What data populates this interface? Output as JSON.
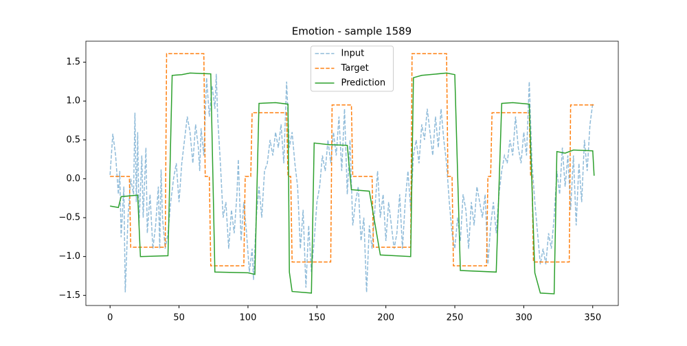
{
  "chart_data": {
    "type": "line",
    "title": "Emotion - sample 1589",
    "xlim": [
      -17.55,
      368.55
    ],
    "xticks": [
      0,
      50,
      100,
      150,
      200,
      250,
      300,
      350
    ],
    "ylim": [
      -1.63,
      1.77
    ],
    "yticks": [
      {
        "value": -1.5,
        "label": "−1.5"
      },
      {
        "value": -1.0,
        "label": "−1.0"
      },
      {
        "value": -0.5,
        "label": "−0.5"
      },
      {
        "value": 0,
        "label": "0.0"
      },
      0.5,
      {
        "value": 1.0,
        "label": "1.0"
      },
      1.5
    ],
    "legend": "upper center",
    "series": [
      {
        "name": "Input",
        "color": "#1f77b4",
        "dash": true,
        "opacity": 0.5,
        "x": [
          0,
          2,
          4,
          6,
          7,
          8,
          10,
          11,
          13,
          15,
          17,
          18,
          19,
          20,
          21,
          23,
          24,
          26,
          27,
          29,
          31,
          33,
          35,
          36,
          37,
          38,
          40,
          42,
          44,
          46,
          48,
          50,
          52,
          54,
          56,
          58,
          60,
          62,
          64,
          65,
          66,
          68,
          70,
          72,
          74,
          76,
          77,
          78,
          80,
          82,
          84,
          86,
          88,
          90,
          92,
          93,
          95,
          97,
          99,
          101,
          103,
          104,
          106,
          108,
          110,
          112,
          114,
          116,
          118,
          120,
          122,
          124,
          126,
          128,
          130,
          132,
          134,
          136,
          138,
          140,
          142,
          144,
          146,
          148,
          150,
          152,
          154,
          156,
          158,
          160,
          162,
          164,
          166,
          168,
          170,
          172,
          174,
          176,
          178,
          180,
          182,
          184,
          186,
          188,
          190,
          192,
          194,
          196,
          198,
          200,
          202,
          204,
          206,
          208,
          210,
          212,
          214,
          216,
          218,
          220,
          222,
          224,
          226,
          228,
          230,
          232,
          234,
          236,
          238,
          240,
          242,
          244,
          246,
          248,
          250,
          252,
          254,
          256,
          258,
          260,
          262,
          264,
          266,
          268,
          270,
          272,
          274,
          276,
          278,
          280,
          282,
          284,
          286,
          288,
          290,
          292,
          294,
          296,
          298,
          300,
          302,
          304,
          306,
          308,
          310,
          312,
          314,
          316,
          318,
          320,
          322,
          324,
          326,
          328,
          330,
          332,
          334,
          336,
          338,
          340,
          342,
          344,
          346,
          348,
          350
        ],
        "values": [
          0.05,
          0.58,
          0.3,
          -0.2,
          0.1,
          -0.75,
          -0.1,
          -1.46,
          -0.5,
          0.0,
          -0.2,
          0.85,
          -0.3,
          0.6,
          -0.6,
          0.3,
          -0.5,
          0.4,
          -0.7,
          -0.2,
          -0.9,
          -0.6,
          -0.1,
          -0.9,
          0.12,
          -0.5,
          -0.9,
          -0.7,
          -0.3,
          0.0,
          0.2,
          -0.3,
          0.2,
          0.5,
          0.8,
          0.6,
          0.2,
          0.7,
          0.4,
          0.1,
          0.65,
          0.3,
          1.3,
          0.8,
          1.2,
          0.9,
          1.35,
          0.8,
          0.2,
          -0.5,
          -0.3,
          -0.9,
          -0.4,
          -0.7,
          -0.2,
          0.25,
          -0.8,
          -0.3,
          -0.7,
          -1.2,
          -0.9,
          -1.3,
          -0.5,
          -0.1,
          -0.5,
          0.1,
          0.2,
          0.5,
          0.3,
          0.6,
          0.4,
          0.7,
          0.2,
          1.25,
          0.4,
          0.6,
          0.2,
          -0.1,
          -0.9,
          -0.4,
          -1.4,
          -0.6,
          -1.2,
          -0.8,
          -0.3,
          -0.1,
          0.3,
          0.1,
          0.5,
          0.2,
          0.6,
          0.3,
          0.8,
          0.1,
          0.9,
          -0.2,
          0.5,
          -0.6,
          -0.3,
          -0.1,
          -0.8,
          -0.5,
          -1.46,
          -0.6,
          -0.9,
          -0.4,
          0.1,
          -0.5,
          -0.2,
          -0.8,
          -0.3,
          -0.6,
          -0.9,
          -0.7,
          -0.2,
          -0.9,
          -0.3,
          0.1,
          -0.4,
          0.3,
          0.5,
          0.2,
          0.7,
          0.5,
          0.9,
          0.6,
          0.3,
          0.8,
          0.4,
          0.9,
          0.5,
          0.2,
          -0.3,
          -0.7,
          -0.9,
          -0.5,
          -0.8,
          -0.2,
          -0.4,
          -0.9,
          -0.3,
          -0.6,
          -0.1,
          -0.3,
          -0.5,
          -0.2,
          -1.1,
          -0.6,
          -0.3,
          -0.7,
          -0.2,
          0.1,
          0.3,
          0.2,
          0.5,
          0.3,
          0.8,
          0.4,
          0.2,
          0.6,
          0.3,
          1.25,
          0.2,
          -0.3,
          -0.7,
          -1.1,
          -0.9,
          -1.1,
          -0.7,
          -0.9,
          -0.5,
          0.1,
          -0.2,
          0.4,
          -0.1,
          0.3,
          -0.4,
          0.3,
          -0.6,
          0.2,
          -0.3,
          0.5,
          0.1,
          0.7,
          0.97
        ]
      },
      {
        "name": "Target",
        "color": "#ff7f0e",
        "dash": true,
        "opacity": 1,
        "x": [
          0,
          14,
          15,
          40,
          41,
          68,
          69,
          72,
          73,
          97,
          98,
          102,
          103,
          128,
          129,
          131,
          132,
          160,
          161,
          175,
          176,
          190,
          191,
          218,
          219,
          244,
          245,
          248,
          249,
          273,
          274,
          276,
          277,
          304,
          305,
          306,
          307,
          333,
          334,
          351
        ],
        "values": [
          0.03,
          0.03,
          -0.88,
          -0.88,
          1.61,
          1.61,
          0.03,
          0.03,
          -1.12,
          -1.12,
          0.03,
          0.03,
          0.85,
          0.85,
          0.03,
          0.03,
          -1.07,
          -1.07,
          0.95,
          0.95,
          0.03,
          0.03,
          -0.88,
          -0.88,
          1.61,
          1.61,
          0.03,
          0.03,
          -1.12,
          -1.12,
          0.03,
          0.03,
          0.85,
          0.85,
          0.03,
          0.03,
          -1.07,
          -1.07,
          0.95,
          0.95
        ]
      },
      {
        "name": "Prediction",
        "color": "#2ca02c",
        "dash": false,
        "opacity": 1,
        "x": [
          0,
          6,
          8,
          20,
          22,
          42,
          45,
          52,
          58,
          73,
          76,
          100,
          105,
          108,
          120,
          129,
          130,
          132,
          146,
          148,
          158,
          172,
          175,
          188,
          196,
          218,
          220,
          226,
          244,
          250,
          254,
          280,
          284,
          292,
          304,
          308,
          312,
          322,
          324,
          330,
          336,
          350,
          351
        ],
        "values": [
          -0.35,
          -0.37,
          -0.23,
          -0.21,
          -1.0,
          -0.99,
          1.33,
          1.34,
          1.36,
          1.35,
          -1.2,
          -1.21,
          -1.23,
          0.97,
          0.98,
          0.96,
          -1.2,
          -1.45,
          -1.47,
          0.46,
          0.44,
          0.43,
          -0.14,
          -0.16,
          -0.98,
          -1.0,
          1.3,
          1.33,
          1.36,
          1.34,
          -1.18,
          -1.2,
          0.97,
          0.98,
          0.96,
          -1.21,
          -1.47,
          -1.48,
          0.35,
          0.33,
          0.37,
          0.36,
          0.04
        ]
      }
    ]
  }
}
